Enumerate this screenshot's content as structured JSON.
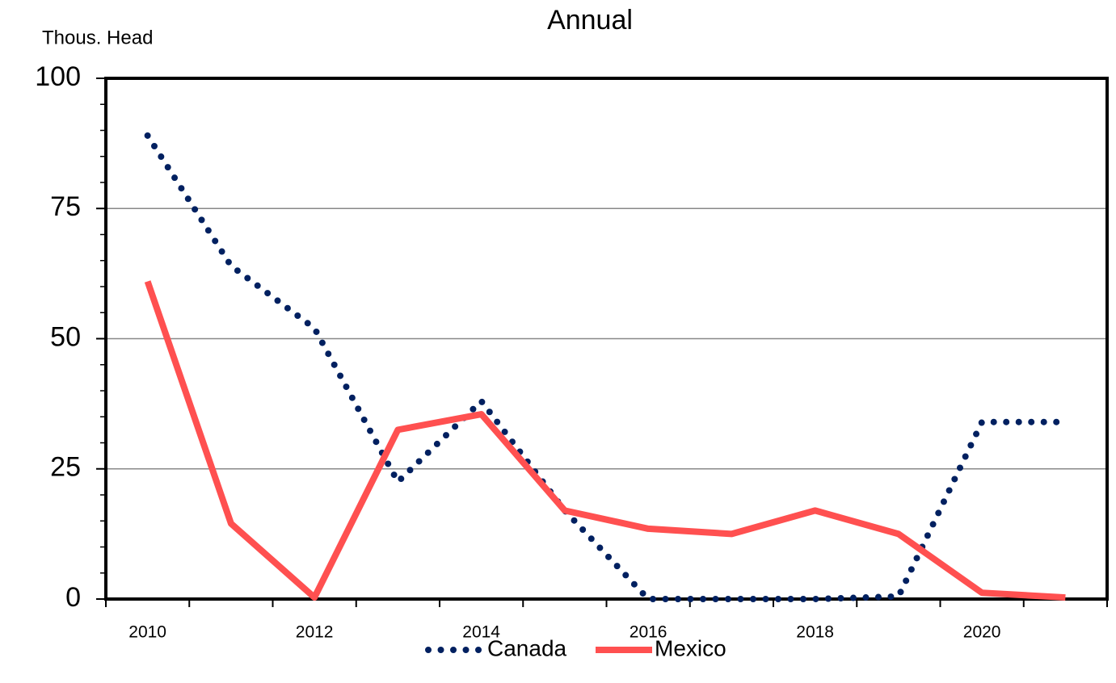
{
  "chart_data": {
    "type": "line",
    "title": "Annual",
    "y_label": "Thous. Head",
    "categories": [
      "2010",
      null,
      "2012",
      null,
      "2014",
      null,
      "2016",
      null,
      "2018",
      null,
      "2020",
      null
    ],
    "series": [
      {
        "name": "Canada",
        "color": "#002060",
        "style": "dotted",
        "values": [
          89,
          64,
          52,
          22.5,
          38,
          17,
          0,
          0,
          0,
          0.5,
          34,
          34
        ]
      },
      {
        "name": "Mexico",
        "color": "#ff5050",
        "style": "solid",
        "values": [
          61,
          14.5,
          0.3,
          32.5,
          35.5,
          17,
          13.5,
          12.5,
          17,
          12.5,
          1.2,
          0.3
        ]
      }
    ],
    "ylim": [
      0,
      100
    ],
    "yticks": [
      0,
      25,
      50,
      75,
      100
    ],
    "yticks_minor": [
      5,
      10,
      15,
      20,
      30,
      35,
      40,
      45,
      55,
      60,
      65,
      70,
      80,
      85,
      90,
      95
    ],
    "grid": true,
    "legend": "bottom"
  }
}
